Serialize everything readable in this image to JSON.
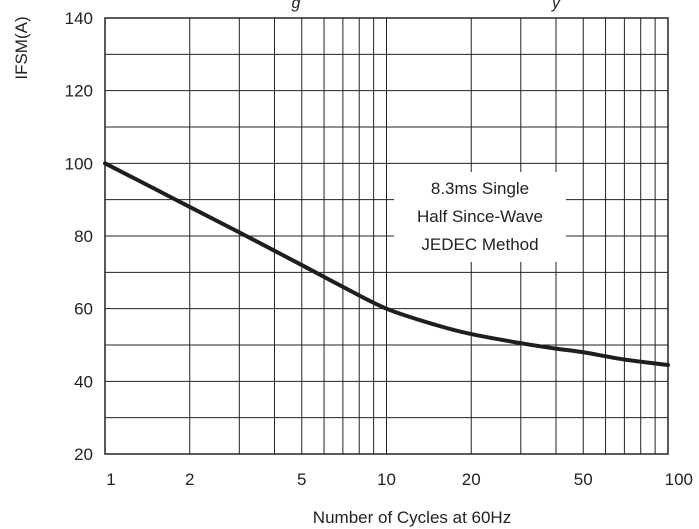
{
  "chart_data": {
    "type": "line",
    "title_partial": "g",
    "title_partial_right": "y",
    "xlabel": "Number of Cycles at 60Hz",
    "ylabel": "IFSM(A)",
    "xscale": "log",
    "xlim": [
      1,
      100
    ],
    "ylim": [
      20,
      140
    ],
    "xticks": [
      1,
      2,
      5,
      10,
      20,
      50,
      100
    ],
    "yticks": [
      20,
      40,
      60,
      80,
      100,
      120,
      140
    ],
    "grid": true,
    "annotation": [
      "8.3ms Single",
      "Half Since-Wave",
      "JEDEC Method"
    ],
    "series": [
      {
        "x": [
          1,
          1.5,
          2,
          3,
          5,
          7,
          10,
          15,
          20,
          30,
          40,
          50,
          70,
          100
        ],
        "y": [
          100,
          93,
          88,
          81,
          72,
          66,
          60,
          55.5,
          53,
          50.5,
          49,
          48,
          46,
          44.5
        ]
      }
    ]
  }
}
